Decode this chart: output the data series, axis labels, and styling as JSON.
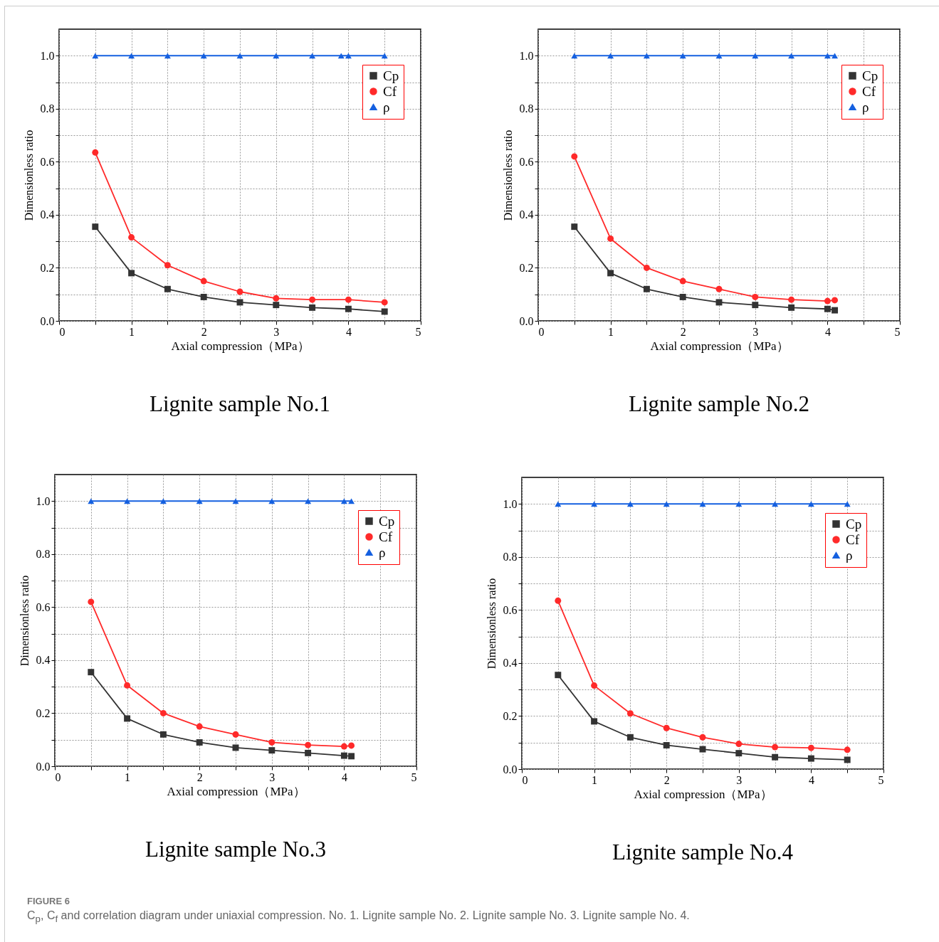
{
  "chart_data": [
    {
      "type": "line",
      "title": "Lignite sample No.1",
      "xlabel": "Axial compression（MPa）",
      "ylabel": "Dimensionless ratio",
      "x": [
        0.5,
        1,
        1.5,
        2,
        2.5,
        3,
        3.5,
        4,
        4.5
      ],
      "series": [
        {
          "name": "Cp",
          "color": "#333333",
          "marker": "square",
          "values": [
            0.355,
            0.18,
            0.12,
            0.09,
            0.07,
            0.06,
            0.05,
            0.045,
            0.035
          ]
        },
        {
          "name": "Cf",
          "color": "#ff2a2a",
          "marker": "circle",
          "values": [
            0.635,
            0.315,
            0.21,
            0.15,
            0.11,
            0.085,
            0.08,
            0.08,
            0.07
          ]
        },
        {
          "name": "ρ",
          "color": "#1560e0",
          "marker": "triangle",
          "x": [
            0.5,
            1,
            1.5,
            2,
            2.5,
            3,
            3.5,
            3.9,
            4,
            4.5
          ],
          "values": [
            1,
            1,
            1,
            1,
            1,
            1,
            1,
            1,
            1,
            1
          ]
        }
      ],
      "xlim": [
        0,
        5
      ],
      "xticks": [
        0,
        {
          "value": 0.5,
          "label": null
        },
        1,
        {
          "value": 1.5,
          "label": null
        },
        2,
        {
          "value": 2.5,
          "label": null
        },
        3,
        {
          "value": 3.5,
          "label": null
        },
        4,
        {
          "value": 4.5,
          "label": null
        },
        5
      ],
      "ylim": [
        0,
        1.1
      ],
      "yticks": [
        {
          "value": 0,
          "label": "0.0"
        },
        {
          "value": 0.1,
          "label": null
        },
        0.2,
        {
          "value": 0.3,
          "label": null
        },
        0.4,
        {
          "value": 0.5,
          "label": null
        },
        0.6,
        {
          "value": 0.7,
          "label": null
        },
        0.8,
        {
          "value": 0.9,
          "label": null
        },
        {
          "value": 1,
          "label": "1.0"
        }
      ],
      "grid": true,
      "line_style": "solid",
      "legend": "top right",
      "annotations": [
        "FIGURE 6",
        "C$_{p}$, C$_{f}$ and correlation diagram under uniaxial compression. No. 1. Lignite sample No. 2. Lignite sample No. 3. Lignite sample No. 4."
      ]
    },
    {
      "type": "line",
      "title": "Lignite sample No.2",
      "xlabel": "Axial compression（MPa）",
      "ylabel": "Dimensionless ratio",
      "x": [
        0.5,
        1,
        1.5,
        2,
        2.5,
        3,
        3.5,
        4,
        4.1
      ],
      "series": [
        {
          "name": "Cp",
          "color": "#333333",
          "marker": "square",
          "values": [
            0.355,
            0.18,
            0.12,
            0.09,
            0.07,
            0.06,
            0.05,
            0.045,
            0.04
          ]
        },
        {
          "name": "Cf",
          "color": "#ff2a2a",
          "marker": "circle",
          "values": [
            0.62,
            0.31,
            0.2,
            0.15,
            0.12,
            0.09,
            0.08,
            0.075,
            0.078
          ]
        },
        {
          "name": "ρ",
          "color": "#1560e0",
          "marker": "triangle",
          "values": [
            1,
            1,
            1,
            1,
            1,
            1,
            1,
            1,
            1
          ]
        }
      ],
      "xlim": [
        0,
        5
      ],
      "xticks": [
        0,
        {
          "value": 0.5,
          "label": null
        },
        1,
        {
          "value": 1.5,
          "label": null
        },
        2,
        {
          "value": 2.5,
          "label": null
        },
        3,
        {
          "value": 3.5,
          "label": null
        },
        4,
        {
          "value": 4.5,
          "label": null
        },
        5
      ],
      "ylim": [
        0,
        1.1
      ],
      "yticks": [
        {
          "value": 0,
          "label": "0.0"
        },
        {
          "value": 0.1,
          "label": null
        },
        0.2,
        {
          "value": 0.3,
          "label": null
        },
        0.4,
        {
          "value": 0.5,
          "label": null
        },
        0.6,
        {
          "value": 0.7,
          "label": null
        },
        0.8,
        {
          "value": 0.9,
          "label": null
        },
        {
          "value": 1,
          "label": "1.0"
        }
      ],
      "grid": true,
      "line_style": "solid",
      "legend": "top right"
    },
    {
      "type": "line",
      "title": "Lignite sample No.3",
      "xlabel": "Axial compression（MPa）",
      "ylabel": "Dimensionless ratio",
      "x": [
        0.5,
        1,
        1.5,
        2,
        2.5,
        3,
        3.5,
        4,
        4.1
      ],
      "series": [
        {
          "name": "Cp",
          "color": "#333333",
          "marker": "square",
          "values": [
            0.355,
            0.18,
            0.12,
            0.09,
            0.07,
            0.06,
            0.05,
            0.04,
            0.038
          ]
        },
        {
          "name": "Cf",
          "color": "#ff2a2a",
          "marker": "circle",
          "values": [
            0.62,
            0.305,
            0.2,
            0.15,
            0.12,
            0.09,
            0.08,
            0.075,
            0.078
          ]
        },
        {
          "name": "ρ",
          "color": "#1560e0",
          "marker": "triangle",
          "values": [
            1,
            1,
            1,
            1,
            1,
            1,
            1,
            1,
            1
          ]
        }
      ],
      "xlim": [
        0,
        5
      ],
      "xticks": [
        0,
        {
          "value": 0.5,
          "label": null
        },
        1,
        {
          "value": 1.5,
          "label": null
        },
        2,
        {
          "value": 2.5,
          "label": null
        },
        3,
        {
          "value": 3.5,
          "label": null
        },
        4,
        {
          "value": 4.5,
          "label": null
        },
        5
      ],
      "ylim": [
        0,
        1.1
      ],
      "yticks": [
        {
          "value": 0,
          "label": "0.0"
        },
        {
          "value": 0.1,
          "label": null
        },
        0.2,
        {
          "value": 0.3,
          "label": null
        },
        0.4,
        {
          "value": 0.5,
          "label": null
        },
        0.6,
        {
          "value": 0.7,
          "label": null
        },
        0.8,
        {
          "value": 0.9,
          "label": null
        },
        {
          "value": 1,
          "label": "1.0"
        }
      ],
      "grid": true,
      "line_style": "solid",
      "legend": "top right"
    },
    {
      "type": "line",
      "title": "Lignite sample No.4",
      "xlabel": "Axial compression（MPa）",
      "ylabel": "Dimensionless ratio",
      "x": [
        0.5,
        1,
        1.5,
        2,
        2.5,
        3,
        3.5,
        4,
        4.5
      ],
      "series": [
        {
          "name": "Cp",
          "color": "#333333",
          "marker": "square",
          "values": [
            0.355,
            0.18,
            0.12,
            0.09,
            0.075,
            0.06,
            0.045,
            0.04,
            0.035
          ]
        },
        {
          "name": "Cf",
          "color": "#ff2a2a",
          "marker": "circle",
          "values": [
            0.635,
            0.315,
            0.21,
            0.155,
            0.12,
            0.095,
            0.083,
            0.08,
            0.073
          ]
        },
        {
          "name": "ρ",
          "color": "#1560e0",
          "marker": "triangle",
          "values": [
            1,
            1,
            1,
            1,
            1,
            1,
            1,
            1,
            1
          ]
        }
      ],
      "xlim": [
        0,
        5
      ],
      "xticks": [
        0,
        {
          "value": 0.5,
          "label": null
        },
        1,
        {
          "value": 1.5,
          "label": null
        },
        2,
        {
          "value": 2.5,
          "label": null
        },
        3,
        {
          "value": 3.5,
          "label": null
        },
        4,
        {
          "value": 4.5,
          "label": null
        },
        5
      ],
      "ylim": [
        0,
        1.1
      ],
      "yticks": [
        {
          "value": 0,
          "label": "0.0"
        },
        {
          "value": 0.1,
          "label": null
        },
        0.2,
        {
          "value": 0.3,
          "label": null
        },
        0.4,
        {
          "value": 0.5,
          "label": null
        },
        0.6,
        {
          "value": 0.7,
          "label": null
        },
        0.8,
        {
          "value": 0.9,
          "label": null
        },
        {
          "value": 1,
          "label": "1.0"
        }
      ],
      "grid": true,
      "line_style": "solid",
      "legend": "top right"
    }
  ]
}
